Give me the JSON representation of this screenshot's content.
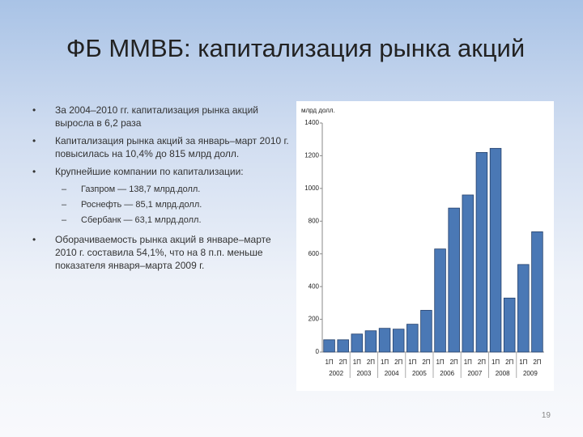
{
  "title": "ФБ ММВБ: капитализация рынка акций",
  "bullets": [
    "За 2004–2010 гг. капитализация рынка акций выросла в 6,2 раза",
    "Капитализация рынка акций за январь–март 2010 г. повысилась на 10,4% до 815 млрд долл.",
    "Крупнейшие компании по капитализации:"
  ],
  "sub_bullets": [
    "Газпром — 138,7 млрд.долл.",
    "Роснефть — 85,1 млрд.долл.",
    "Сбербанк — 63,1 млрд.долл."
  ],
  "last_bullet": "Оборачиваемость рынка акций в январе–марте 2010 г. составила 54,1%, что на 8 п.п. меньше показателя января–марта 2009 г.",
  "page_number": "19",
  "chart_data": {
    "type": "bar",
    "y_label": "млрд долл.",
    "categories": [
      "1П",
      "2П",
      "1П",
      "2П",
      "1П",
      "2П",
      "1П",
      "2П",
      "1П",
      "2П",
      "1П",
      "2П",
      "1П",
      "2П",
      "1П",
      "2П"
    ],
    "groups": [
      "2002",
      "2003",
      "2004",
      "2005",
      "2006",
      "2007",
      "2008",
      "2009"
    ],
    "values": [
      75,
      75,
      110,
      130,
      145,
      140,
      170,
      255,
      630,
      880,
      960,
      1220,
      1245,
      330,
      535,
      735
    ],
    "color": "#4a78b5",
    "ylim": [
      0,
      1400
    ],
    "yticks": [
      0,
      200,
      400,
      600,
      800,
      1000,
      1200,
      1400
    ],
    "grid": false
  }
}
